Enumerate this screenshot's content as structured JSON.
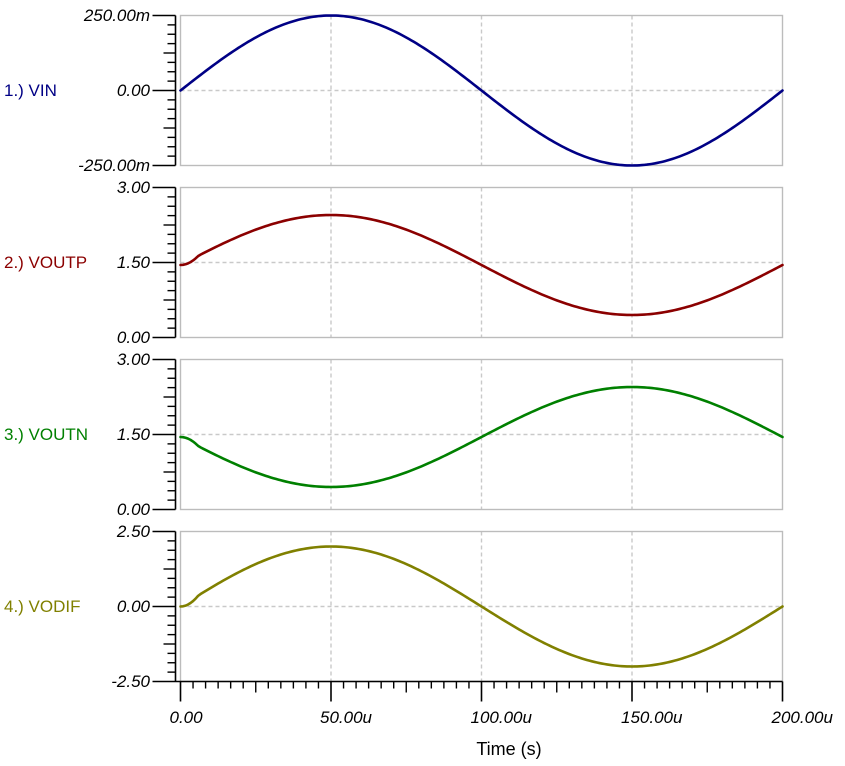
{
  "window": {
    "background": "#ffffff"
  },
  "axis": {
    "x_title": "Time (s)",
    "x_tick_labels": [
      "0.00",
      "50.00u",
      "100.00u",
      "150.00u",
      "200.00u"
    ],
    "x_range_seconds": [
      0,
      0.0002
    ]
  },
  "chart_data": [
    {
      "type": "line",
      "panel": 1,
      "label": "1.) VIN",
      "color": "#000085",
      "y_ticks": [
        "250.00m",
        "0.00",
        "-250.00m"
      ],
      "y_range_volts": [
        -0.25,
        0.25
      ],
      "x_range_seconds": [
        0,
        0.0002
      ],
      "grid": {
        "h_dashed_at": "0.00",
        "v_dashed_at": [
          "50.00u",
          "100.00u",
          "150.00u"
        ]
      },
      "series": [
        {
          "name": "VIN",
          "waveform": "sine",
          "amplitude_v": 0.25,
          "dc_offset_v": 0.0,
          "frequency_hz": 5000,
          "phase_deg": 0,
          "startup_ramp_s": 0
        }
      ]
    },
    {
      "type": "line",
      "panel": 2,
      "label": "2.) VOUTP",
      "color": "#8B0000",
      "y_ticks": [
        "3.00",
        "1.50",
        "0.00"
      ],
      "y_range_volts": [
        0.0,
        3.0
      ],
      "x_range_seconds": [
        0,
        0.0002
      ],
      "grid": {
        "h_dashed_at": "1.50",
        "v_dashed_at": [
          "50.00u",
          "100.00u",
          "150.00u"
        ]
      },
      "series": [
        {
          "name": "VOUTP",
          "waveform": "sine",
          "amplitude_v": 1.0,
          "dc_offset_v": 1.45,
          "frequency_hz": 5000,
          "phase_deg": 0,
          "startup_ramp_s": 6e-06
        }
      ]
    },
    {
      "type": "line",
      "panel": 3,
      "label": "3.) VOUTN",
      "color": "#008000",
      "y_ticks": [
        "3.00",
        "1.50",
        "0.00"
      ],
      "y_range_volts": [
        0.0,
        3.0
      ],
      "x_range_seconds": [
        0,
        0.0002
      ],
      "grid": {
        "h_dashed_at": "1.50",
        "v_dashed_at": [
          "50.00u",
          "100.00u",
          "150.00u"
        ]
      },
      "series": [
        {
          "name": "VOUTN",
          "waveform": "sine",
          "amplitude_v": 1.0,
          "dc_offset_v": 1.45,
          "frequency_hz": 5000,
          "phase_deg": 180,
          "startup_ramp_s": 6e-06
        }
      ]
    },
    {
      "type": "line",
      "panel": 4,
      "label": "4.) VODIF",
      "color": "#808000",
      "y_ticks": [
        "2.50",
        "0.00",
        "-2.50"
      ],
      "y_range_volts": [
        -2.5,
        2.5
      ],
      "x_range_seconds": [
        0,
        0.0002
      ],
      "grid": {
        "h_dashed_at": "0.00",
        "v_dashed_at": [
          "50.00u",
          "100.00u",
          "150.00u"
        ]
      },
      "series": [
        {
          "name": "VODIF",
          "waveform": "sine",
          "amplitude_v": 2.0,
          "dc_offset_v": 0.0,
          "frequency_hz": 5000,
          "phase_deg": 0,
          "startup_ramp_s": 6e-06
        }
      ]
    }
  ]
}
